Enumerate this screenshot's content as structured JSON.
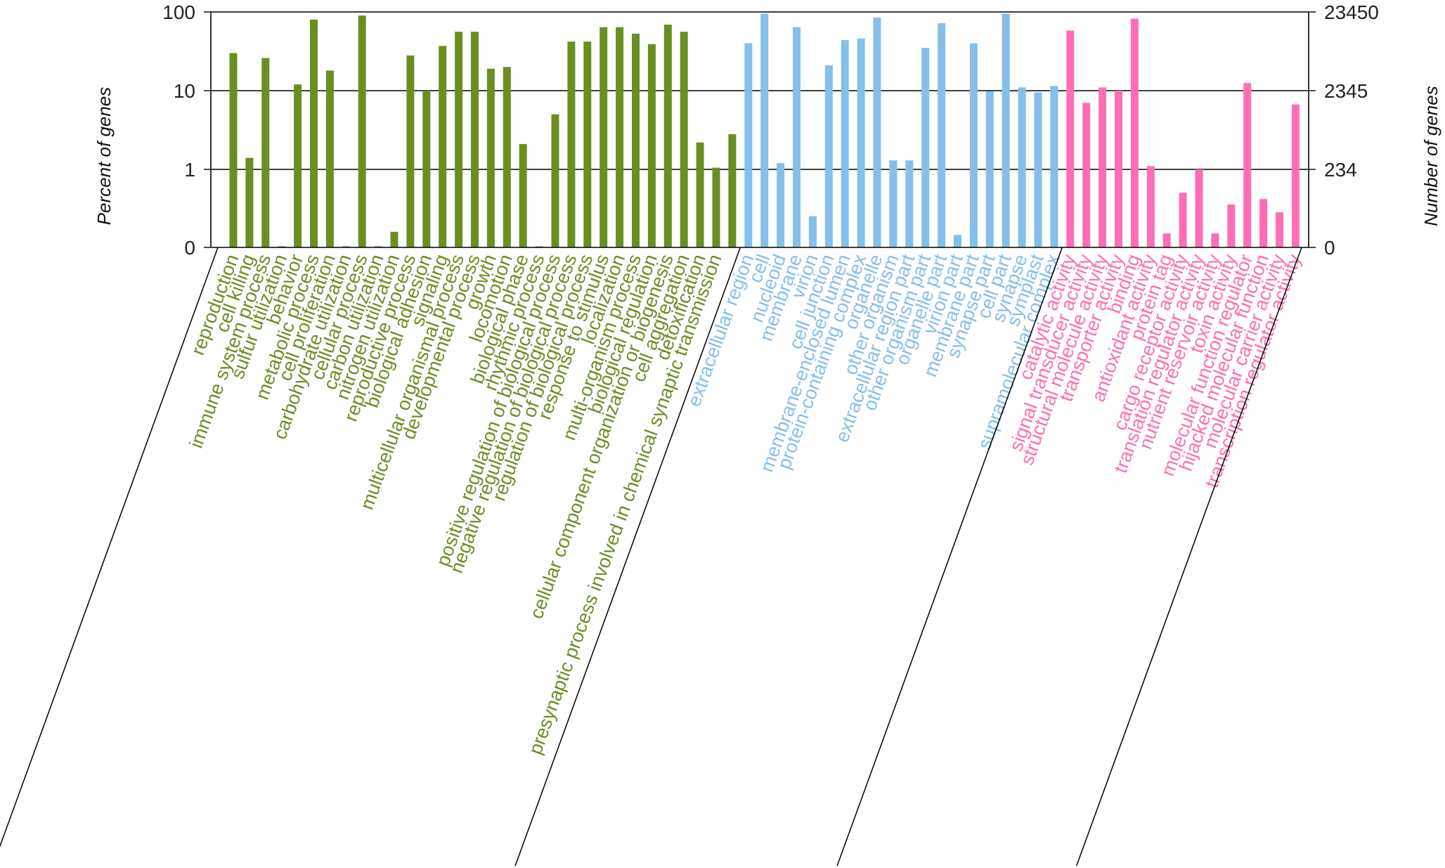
{
  "chart_data": {
    "type": "bar",
    "yscale": "log-with-zero",
    "ylabel_left": "Percent of genes",
    "ylabel_right": "Number of genes",
    "left_ticks": [
      "100",
      "10",
      "1",
      "0"
    ],
    "right_ticks": [
      "23450",
      "2345",
      "234",
      "0"
    ],
    "left_tick_values": [
      100,
      10,
      1,
      0
    ],
    "ylim": [
      0,
      100
    ],
    "grid": true,
    "legend": "none",
    "groups": [
      {
        "color": "#6b8e23",
        "categories": [
          {
            "label": "reproduction",
            "value": 30
          },
          {
            "label": "cell killing",
            "value": 1.4
          },
          {
            "label": "immune system process",
            "value": 26
          },
          {
            "label": "sulfur utilization",
            "value": 0
          },
          {
            "label": "behavior",
            "value": 12
          },
          {
            "label": "metabolic process",
            "value": 80
          },
          {
            "label": "cell proliferation",
            "value": 18
          },
          {
            "label": "carbohydrate utilization",
            "value": 0
          },
          {
            "label": "cellular process",
            "value": 90
          },
          {
            "label": "carbon utilization",
            "value": 0
          },
          {
            "label": "nitrogen utilization",
            "value": 0.2
          },
          {
            "label": "reproductive process",
            "value": 28
          },
          {
            "label": "biological adhesion",
            "value": 10
          },
          {
            "label": "signaling",
            "value": 37
          },
          {
            "label": "multicellular organismal process",
            "value": 56
          },
          {
            "label": "developmental process",
            "value": 56
          },
          {
            "label": "growth",
            "value": 19
          },
          {
            "label": "locomotion",
            "value": 20
          },
          {
            "label": "biological phase",
            "value": 2.1
          },
          {
            "label": "rhythmic process",
            "value": 0
          },
          {
            "label": "positive regulation of biological process",
            "value": 5
          },
          {
            "label": "negative regulation of biological process",
            "value": 42
          },
          {
            "label": "regulation of biological process",
            "value": 42
          },
          {
            "label": "response to stimulus",
            "value": 64
          },
          {
            "label": "localization",
            "value": 64
          },
          {
            "label": "multi-organism process",
            "value": 53
          },
          {
            "label": "biological regulation",
            "value": 39
          },
          {
            "label": "cellular component organization or biogenesis",
            "value": 69
          },
          {
            "label": "cell aggregation",
            "value": 56
          },
          {
            "label": "detoxification",
            "value": 2.2
          },
          {
            "label": "presynaptic process involved in chemical synaptic transmission",
            "value": 1.05
          },
          {
            "label": "",
            "value": 2.8
          }
        ]
      },
      {
        "color": "#85bfea",
        "categories": [
          {
            "label": "extracellular region",
            "value": 40
          },
          {
            "label": "cell",
            "value": 95
          },
          {
            "label": "nucleoid",
            "value": 1.2
          },
          {
            "label": "membrane",
            "value": 64
          },
          {
            "label": "virion",
            "value": 0.4
          },
          {
            "label": "cell junction",
            "value": 21
          },
          {
            "label": "membrane-enclosed lumen",
            "value": 44
          },
          {
            "label": "protein-containing complex",
            "value": 46
          },
          {
            "label": "organelle",
            "value": 85
          },
          {
            "label": "other organism",
            "value": 1.3
          },
          {
            "label": "extracellular region part",
            "value": 1.3
          },
          {
            "label": "other organism part",
            "value": 35
          },
          {
            "label": "organelle part",
            "value": 72
          },
          {
            "label": "virion part",
            "value": 0.16
          },
          {
            "label": "membrane part",
            "value": 40
          },
          {
            "label": "synapse part",
            "value": 9.8
          },
          {
            "label": "cell part",
            "value": 95
          },
          {
            "label": "synapse",
            "value": 11
          },
          {
            "label": "symplast",
            "value": 9.5
          },
          {
            "label": "supramolecular complex",
            "value": 11.5
          }
        ]
      },
      {
        "color": "#ff6eb4",
        "categories": [
          {
            "label": "catalytic activity",
            "value": 58
          },
          {
            "label": "signal transducer activity",
            "value": 7
          },
          {
            "label": "structural molecule activity",
            "value": 11
          },
          {
            "label": "transporter activity",
            "value": 10
          },
          {
            "label": "binding",
            "value": 82
          },
          {
            "label": "antioxidant activity",
            "value": 1.1
          },
          {
            "label": "protein tag",
            "value": 0.18
          },
          {
            "label": "cargo receptor activity",
            "value": 0.7
          },
          {
            "label": "translation regulator activity",
            "value": 1
          },
          {
            "label": "nutrient reservoir activity",
            "value": 0.18
          },
          {
            "label": "toxin activity",
            "value": 0.55
          },
          {
            "label": "molecular function regulator",
            "value": 12.5
          },
          {
            "label": "hijacked molecular function",
            "value": 0.62
          },
          {
            "label": "molecular carrier activity",
            "value": 0.45
          },
          {
            "label": "transcription regulator activity",
            "value": 6.7
          }
        ]
      }
    ]
  }
}
